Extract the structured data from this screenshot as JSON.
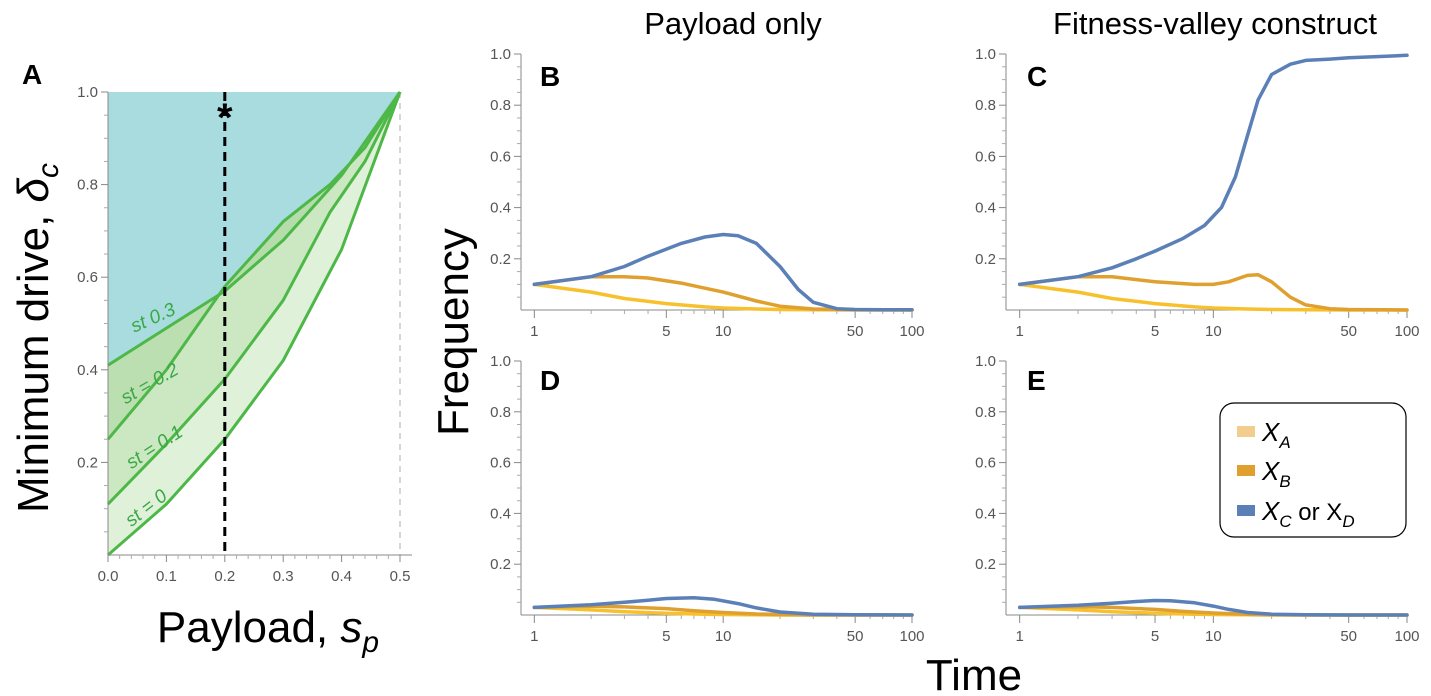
{
  "figure": {
    "y_axis_label": "Frequency",
    "x_axis_label": "Time",
    "column_titles": [
      "Payload only",
      "Fitness-valley construct"
    ]
  },
  "legend": {
    "items": [
      {
        "base": "X",
        "sub": "A",
        "suffix": "",
        "color": "#f2cd8c"
      },
      {
        "base": "X",
        "sub": "B",
        "suffix": "",
        "color": "#e0a030"
      },
      {
        "base": "X",
        "sub": "C",
        "suffix": " or X",
        "sub2": "D",
        "color": "#5b80b8"
      }
    ]
  },
  "colors": {
    "xa": "#f7c12e",
    "xb": "#e0a030",
    "xc": "#5b80b8",
    "region_teal": "#a8dcdf",
    "region_green_light": "#dcefd5",
    "region_green_mid": "#c7e6bd",
    "region_green_dark": "#b4dca9",
    "contour_green": "#4db848"
  },
  "chart_data": [
    {
      "panel": "A",
      "type": "area",
      "xlabel_main": "Payload, ",
      "xlabel_sym": "s",
      "xlabel_sub": "p",
      "ylabel_main": "Minimum drive, ",
      "ylabel_sym": "δ",
      "ylabel_sub": "c",
      "xlim": [
        0,
        0.5
      ],
      "ylim": [
        0,
        1
      ],
      "x_ticks": [
        "0.0",
        "0.1",
        "0.2",
        "0.3",
        "0.4",
        "0.5"
      ],
      "y_ticks": [
        "0.2",
        "0.4",
        "0.6",
        "0.8",
        "1.0"
      ],
      "curves": [
        {
          "st": 0,
          "label": "st = 0",
          "points": [
            [
              0,
              0
            ],
            [
              0.1,
              0.11
            ],
            [
              0.2,
              0.25
            ],
            [
              0.3,
              0.42
            ],
            [
              0.4,
              0.66
            ],
            [
              0.5,
              1.0
            ]
          ]
        },
        {
          "st": 0.1,
          "label": "st = 0.1",
          "points": [
            [
              0,
              0.11
            ],
            [
              0.1,
              0.24
            ],
            [
              0.2,
              0.38
            ],
            [
              0.3,
              0.55
            ],
            [
              0.38,
              0.74
            ],
            [
              0.44,
              0.85
            ],
            [
              0.5,
              1.0
            ]
          ]
        },
        {
          "st": 0.2,
          "label": "st = 0.2",
          "points": [
            [
              0,
              0.25
            ],
            [
              0.1,
              0.4
            ],
            [
              0.2,
              0.58
            ],
            [
              0.3,
              0.72
            ],
            [
              0.38,
              0.8
            ],
            [
              0.44,
              0.88
            ],
            [
              0.5,
              1.0
            ]
          ]
        },
        {
          "st": 0.3,
          "label": "st  0.3",
          "points": [
            [
              0,
              0.41
            ],
            [
              0.1,
              0.49
            ],
            [
              0.2,
              0.57
            ],
            [
              0.3,
              0.68
            ],
            [
              0.4,
              0.82
            ],
            [
              0.5,
              1.0
            ]
          ]
        }
      ],
      "marker": {
        "symbol": "*",
        "x": 0.2,
        "y": 0.95
      },
      "dashed_vertical_x": 0.2,
      "boundary_vertical_x": 0.5
    },
    {
      "panel": "B",
      "type": "line",
      "xscale": "log",
      "xlim": [
        1,
        100
      ],
      "ylim": [
        0,
        1
      ],
      "x_ticks": [
        "1",
        "5",
        "10",
        "50",
        "100"
      ],
      "y_ticks": [
        "0.2",
        "0.4",
        "0.6",
        "0.8",
        "1.0"
      ],
      "series": [
        {
          "key": "xc",
          "x": [
            1,
            2,
            3,
            4,
            6,
            8,
            10,
            12,
            15,
            20,
            25,
            30,
            40,
            50,
            70,
            100
          ],
          "values": [
            0.1,
            0.13,
            0.17,
            0.21,
            0.26,
            0.285,
            0.295,
            0.29,
            0.26,
            0.17,
            0.08,
            0.03,
            0.005,
            0.002,
            0.001,
            0.001
          ]
        },
        {
          "key": "xb",
          "x": [
            1,
            2,
            3,
            4,
            6,
            8,
            10,
            15,
            20,
            30,
            50,
            100
          ],
          "values": [
            0.1,
            0.13,
            0.13,
            0.125,
            0.105,
            0.085,
            0.07,
            0.035,
            0.015,
            0.004,
            0.001,
            0.0
          ]
        },
        {
          "key": "xa",
          "x": [
            1,
            2,
            3,
            5,
            8,
            10,
            15,
            20,
            30,
            50,
            100
          ],
          "values": [
            0.1,
            0.07,
            0.045,
            0.025,
            0.012,
            0.008,
            0.004,
            0.002,
            0.001,
            0.0,
            0.0
          ]
        }
      ]
    },
    {
      "panel": "C",
      "type": "line",
      "xscale": "log",
      "xlim": [
        1,
        100
      ],
      "ylim": [
        0,
        1
      ],
      "x_ticks": [
        "1",
        "5",
        "10",
        "50",
        "100"
      ],
      "y_ticks": [
        "0.2",
        "0.4",
        "0.6",
        "0.8",
        "1.0"
      ],
      "series": [
        {
          "key": "xc",
          "x": [
            1,
            2,
            3,
            4,
            5,
            7,
            9,
            11,
            13,
            15,
            17,
            20,
            25,
            30,
            40,
            50,
            70,
            100
          ],
          "values": [
            0.1,
            0.13,
            0.165,
            0.2,
            0.23,
            0.28,
            0.33,
            0.4,
            0.52,
            0.68,
            0.82,
            0.92,
            0.96,
            0.975,
            0.98,
            0.985,
            0.99,
            0.995
          ]
        },
        {
          "key": "xb",
          "x": [
            1,
            2,
            3,
            5,
            8,
            10,
            12,
            15,
            17,
            20,
            25,
            30,
            40,
            50,
            100
          ],
          "values": [
            0.1,
            0.13,
            0.13,
            0.11,
            0.1,
            0.1,
            0.11,
            0.135,
            0.138,
            0.11,
            0.05,
            0.02,
            0.005,
            0.002,
            0.0
          ]
        },
        {
          "key": "xa",
          "x": [
            1,
            2,
            3,
            5,
            8,
            10,
            15,
            20,
            30,
            50,
            100
          ],
          "values": [
            0.1,
            0.07,
            0.045,
            0.025,
            0.012,
            0.008,
            0.004,
            0.002,
            0.001,
            0.0,
            0.0
          ]
        }
      ]
    },
    {
      "panel": "D",
      "type": "line",
      "xscale": "log",
      "xlim": [
        1,
        100
      ],
      "ylim": [
        0,
        1
      ],
      "x_ticks": [
        "1",
        "5",
        "10",
        "50",
        "100"
      ],
      "y_ticks": [
        "0.2",
        "0.4",
        "0.6",
        "0.8",
        "1.0"
      ],
      "series": [
        {
          "key": "xc",
          "x": [
            1,
            2,
            3,
            4,
            5,
            7,
            9,
            12,
            15,
            20,
            30,
            50,
            100
          ],
          "values": [
            0.03,
            0.04,
            0.05,
            0.058,
            0.065,
            0.068,
            0.062,
            0.045,
            0.028,
            0.012,
            0.003,
            0.001,
            0.0
          ]
        },
        {
          "key": "xb",
          "x": [
            1,
            2,
            3,
            5,
            7,
            10,
            15,
            20,
            30,
            50,
            100
          ],
          "values": [
            0.03,
            0.035,
            0.032,
            0.025,
            0.017,
            0.01,
            0.004,
            0.002,
            0.0,
            0.0,
            0.0
          ]
        },
        {
          "key": "xa",
          "x": [
            1,
            2,
            3,
            5,
            8,
            10,
            20,
            50,
            100
          ],
          "values": [
            0.03,
            0.02,
            0.013,
            0.007,
            0.003,
            0.002,
            0.0,
            0.0,
            0.0
          ]
        }
      ]
    },
    {
      "panel": "E",
      "type": "line",
      "xscale": "log",
      "xlim": [
        1,
        100
      ],
      "ylim": [
        0,
        1
      ],
      "x_ticks": [
        "1",
        "5",
        "10",
        "50",
        "100"
      ],
      "y_ticks": [
        "0.2",
        "0.4",
        "0.6",
        "0.8",
        "1.0"
      ],
      "series": [
        {
          "key": "xc",
          "x": [
            1,
            2,
            3,
            4,
            5,
            6,
            8,
            10,
            12,
            15,
            20,
            30,
            50,
            100
          ],
          "values": [
            0.03,
            0.038,
            0.046,
            0.053,
            0.057,
            0.056,
            0.048,
            0.035,
            0.022,
            0.01,
            0.003,
            0.001,
            0.0,
            0.0
          ]
        },
        {
          "key": "xb",
          "x": [
            1,
            2,
            3,
            5,
            7,
            10,
            15,
            20,
            30,
            50,
            100
          ],
          "values": [
            0.03,
            0.033,
            0.03,
            0.022,
            0.014,
            0.008,
            0.003,
            0.001,
            0.0,
            0.0,
            0.0
          ]
        },
        {
          "key": "xa",
          "x": [
            1,
            2,
            3,
            5,
            8,
            10,
            20,
            50,
            100
          ],
          "values": [
            0.03,
            0.02,
            0.013,
            0.007,
            0.003,
            0.002,
            0.0,
            0.0,
            0.0
          ]
        }
      ]
    }
  ]
}
